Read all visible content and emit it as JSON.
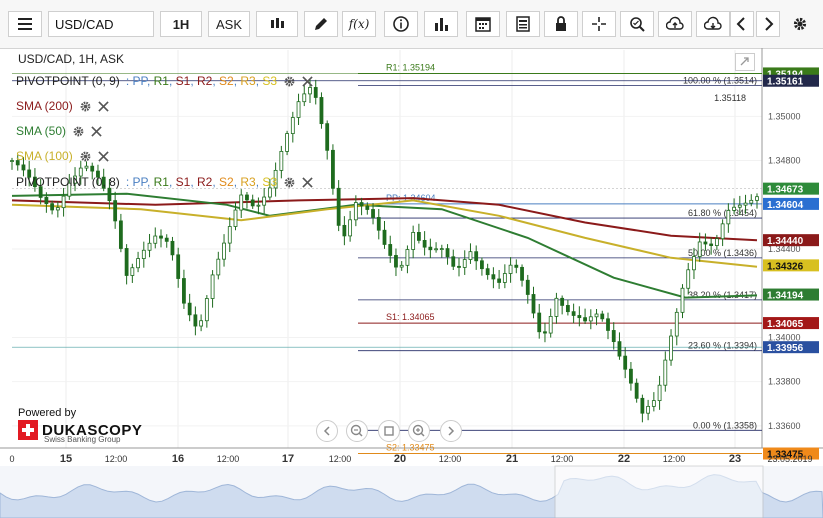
{
  "toolbar": {
    "symbol": "USD/CAD",
    "period": "1H",
    "side": "ASK"
  },
  "chart_title": "USD/CAD, 1H, ASK",
  "legend": {
    "pivot1": "PIVOTPOINT (0, 9)",
    "pivot_keys": [
      "PP",
      "R1",
      "S1",
      "R2",
      "S2",
      "R3",
      "S3"
    ],
    "pivot2": "PIVOTPOINT (0, 8)",
    "sma200": "SMA (200)",
    "sma50": "SMA (50)",
    "sma100": "SMA (100)"
  },
  "colors": {
    "sma200": "#8b1a1a",
    "sma50": "#2e7d32",
    "sma100": "#c8b02a",
    "candle": "#1e6b1e",
    "pp": "#4a7fc1",
    "r1": "#3a7a1a",
    "s1": "#8b1a1a",
    "s2": "#e08a1a",
    "fib": "#222a66"
  },
  "branding": {
    "powered_by": "Powered by",
    "company": "DUKASCOPY",
    "tagline": "Swiss Banking Group"
  },
  "chart_data": {
    "type": "candlestick",
    "y_range": [
      1.335,
      1.353
    ],
    "y_ticks": [
      "1.35000",
      "1.34800",
      "1.34400",
      "1.34000",
      "1.33800",
      "1.33600"
    ],
    "x_ticks": [
      "0",
      "15",
      "12:00",
      "16",
      "12:00",
      "17",
      "12:00",
      "20",
      "12:00",
      "21",
      "12:00",
      "22",
      "12:00",
      "23",
      "23.05.2019"
    ],
    "close_path": [
      [
        0,
        1.348
      ],
      [
        10,
        1.3472
      ],
      [
        20,
        1.3462
      ],
      [
        30,
        1.3458
      ],
      [
        40,
        1.3472
      ],
      [
        50,
        1.3478
      ],
      [
        60,
        1.347
      ],
      [
        70,
        1.3458
      ],
      [
        80,
        1.343
      ],
      [
        90,
        1.344
      ],
      [
        100,
        1.3445
      ],
      [
        110,
        1.344
      ],
      [
        120,
        1.3415
      ],
      [
        130,
        1.3405
      ],
      [
        140,
        1.343
      ],
      [
        150,
        1.3445
      ],
      [
        160,
        1.3462
      ],
      [
        170,
        1.3458
      ],
      [
        180,
        1.347
      ],
      [
        190,
        1.349
      ],
      [
        200,
        1.3505
      ],
      [
        210,
        1.3512
      ],
      [
        220,
        1.3485
      ],
      [
        230,
        1.3445
      ],
      [
        240,
        1.3462
      ],
      [
        250,
        1.3455
      ],
      [
        260,
        1.344
      ],
      [
        270,
        1.343
      ],
      [
        280,
        1.345
      ],
      [
        290,
        1.344
      ],
      [
        300,
        1.3438
      ],
      [
        310,
        1.3428
      ],
      [
        320,
        1.344
      ],
      [
        330,
        1.3432
      ],
      [
        340,
        1.3425
      ],
      [
        350,
        1.3432
      ],
      [
        360,
        1.3418
      ],
      [
        370,
        1.34
      ],
      [
        380,
        1.342
      ],
      [
        390,
        1.341
      ],
      [
        400,
        1.3405
      ],
      [
        410,
        1.341
      ],
      [
        420,
        1.34
      ],
      [
        430,
        1.3385
      ],
      [
        440,
        1.3365
      ],
      [
        450,
        1.337
      ],
      [
        460,
        1.34
      ],
      [
        470,
        1.343
      ],
      [
        480,
        1.3445
      ],
      [
        490,
        1.344
      ],
      [
        500,
        1.3455
      ],
      [
        510,
        1.346
      ],
      [
        520,
        1.3466
      ]
    ],
    "sma200": [
      [
        0,
        1.3462
      ],
      [
        100,
        1.346
      ],
      [
        200,
        1.3462
      ],
      [
        280,
        1.3463
      ],
      [
        340,
        1.346
      ],
      [
        400,
        1.3452
      ],
      [
        460,
        1.3446
      ],
      [
        520,
        1.3444
      ]
    ],
    "sma50": [
      [
        0,
        1.3464
      ],
      [
        80,
        1.3465
      ],
      [
        150,
        1.346
      ],
      [
        180,
        1.3455
      ],
      [
        240,
        1.346
      ],
      [
        300,
        1.3458
      ],
      [
        360,
        1.3445
      ],
      [
        420,
        1.3427
      ],
      [
        470,
        1.3418
      ],
      [
        520,
        1.3419
      ]
    ],
    "sma100": [
      [
        0,
        1.346
      ],
      [
        90,
        1.3458
      ],
      [
        160,
        1.3453
      ],
      [
        220,
        1.3458
      ],
      [
        280,
        1.3462
      ],
      [
        340,
        1.3455
      ],
      [
        400,
        1.3445
      ],
      [
        460,
        1.3436
      ],
      [
        520,
        1.3432
      ]
    ],
    "levels": [
      {
        "label": "R1: 1.35194",
        "value": 1.35194,
        "key": "r1"
      },
      {
        "label": "PP: 1.34604",
        "value": 1.34604,
        "key": "pp"
      },
      {
        "label": "S1: 1.34065",
        "value": 1.34065,
        "key": "s1"
      },
      {
        "label": "S2: 1.33475",
        "value": 1.33475,
        "key": "s2"
      }
    ],
    "fib_levels": [
      {
        "label": "100.00 % (1.3514)",
        "value": 1.3514
      },
      {
        "label": "61.80 % (1.3454)",
        "value": 1.3454
      },
      {
        "label": "50.00 % (1.3436)",
        "value": 1.3436
      },
      {
        "label": "38.20 % (1.3417)",
        "value": 1.3417
      },
      {
        "label": "23.60 % (1.3394)",
        "value": 1.3394
      },
      {
        "label": "0.00 % (1.3358)",
        "value": 1.3358
      }
    ],
    "extra_label": "1.35118",
    "price_tags": [
      {
        "value": "1.35194",
        "y": 1.35194,
        "bg": "#3a7a1a"
      },
      {
        "value": "1.35161",
        "y": 1.35161,
        "bg": "#22284a"
      },
      {
        "value": "1.34673",
        "y": 1.34673,
        "bg": "#2e8b3a"
      },
      {
        "value": "1.34604",
        "y": 1.34604,
        "bg": "#2a6fd1"
      },
      {
        "value": "1.34440",
        "y": 1.3444,
        "bg": "#8b1a1a"
      },
      {
        "value": "1.34326",
        "y": 1.34326,
        "bg": "#d8c020"
      },
      {
        "value": "1.34194",
        "y": 1.34194,
        "bg": "#2e7d32"
      },
      {
        "value": "1.34065",
        "y": 1.34065,
        "bg": "#a31818"
      },
      {
        "value": "1.33956",
        "y": 1.33956,
        "bg": "#2a50a0"
      },
      {
        "value": "1.33475",
        "y": 1.33475,
        "bg": "#f08a1a"
      }
    ]
  }
}
